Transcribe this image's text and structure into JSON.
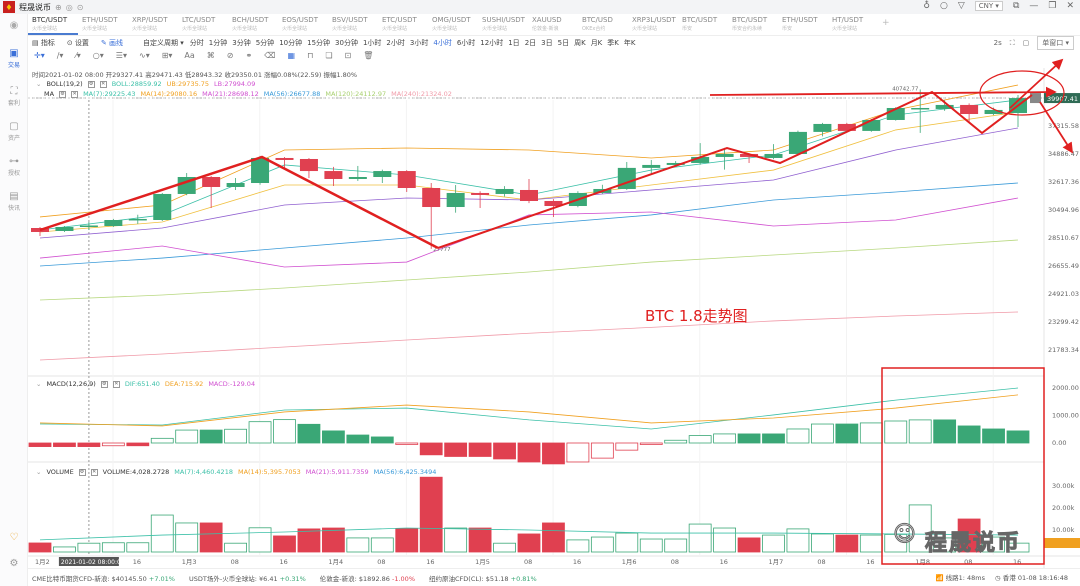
{
  "app": {
    "title": "程晟说币",
    "currency": "CNY"
  },
  "sidebar": {
    "items": [
      {
        "label": "交易",
        "active": true
      },
      {
        "label": "套利"
      },
      {
        "label": "资产"
      },
      {
        "label": "授权"
      },
      {
        "label": "快讯"
      }
    ]
  },
  "tabs": [
    {
      "pair": "BTC/USDT",
      "exchange": "火币全球站",
      "active": true
    },
    {
      "pair": "ETH/USDT",
      "exchange": "火币全球站"
    },
    {
      "pair": "XRP/USDT",
      "exchange": "火币全球站"
    },
    {
      "pair": "LTC/USDT",
      "exchange": "火币全球站"
    },
    {
      "pair": "BCH/USDT",
      "exchange": "火币全球站"
    },
    {
      "pair": "EOS/USDT",
      "exchange": "火币全球站"
    },
    {
      "pair": "BSV/USDT",
      "exchange": "火币全球站"
    },
    {
      "pair": "ETC/USDT",
      "exchange": "火币全球站"
    },
    {
      "pair": "OMG/USDT",
      "exchange": "火币全球站"
    },
    {
      "pair": "SUSHI/USDT",
      "exchange": "火币全球站"
    },
    {
      "pair": "XAUUSD",
      "exchange": "伦敦金·新浪"
    },
    {
      "pair": "BTC/USD",
      "exchange": "OKEx合约"
    },
    {
      "pair": "XRP3L/USDT",
      "exchange": "火币全球站"
    },
    {
      "pair": "BTC/USDT",
      "exchange": "币安"
    },
    {
      "pair": "BTC/USDT",
      "exchange": "币安合约永续"
    },
    {
      "pair": "ETH/USDT",
      "exchange": "币安"
    },
    {
      "pair": "HT/USDT",
      "exchange": "火币全球站"
    }
  ],
  "toolbar": {
    "indicator": "指标",
    "settings": "设置",
    "draw": "画线",
    "custom_period": "自定义周期 ▾",
    "periods": [
      "分时",
      "1分钟",
      "3分钟",
      "5分钟",
      "10分钟",
      "15分钟",
      "30分钟",
      "1小时",
      "2小时",
      "3小时",
      "4小时",
      "6小时",
      "12小时",
      "1日",
      "2日",
      "3日",
      "5日",
      "周K",
      "月K",
      "季K",
      "年K"
    ],
    "active_period": "4小时",
    "refresh": "2s",
    "window_mode": "单窗口 ▾"
  },
  "info": {
    "time": "时间2021-01-02 08:00",
    "open": "开29327.41",
    "high": "高29471.43",
    "low": "低28943.32",
    "close": "收29350.01",
    "change": "涨幅0.08%(22.59)",
    "amplitude": "振幅1.80%"
  },
  "legends": {
    "boll": {
      "name": "BOLL(19,2)",
      "mid": "BOLL:28859.92",
      "ub": "UB:29735.75",
      "lb": "LB:27994.09"
    },
    "ma": {
      "name": "MA",
      "ma7": "MA(7):29225.43",
      "ma14": "MA(14):29080.16",
      "ma21": "MA(21):28698.12",
      "ma56": "MA(56):26677.88",
      "ma120": "MA(120):24112.97",
      "ma240": "MA(240):21324.02"
    },
    "macd": {
      "name": "MACD(12,26,9)",
      "dif": "DIF:651.40",
      "dea": "DEA:715.92",
      "macd": "MACD:-129.04"
    },
    "volume": {
      "name": "VOLUME",
      "vol": "VOLUME:4,028.2728",
      "ma7": "MA(7):4,460.4218",
      "ma14": "MA(14):5,395.7053",
      "ma21": "MA(21):5,911.7359",
      "ma56": "MA(56):6,425.3494"
    }
  },
  "colors": {
    "up": "#3aa776",
    "down": "#e04050",
    "accent": "#3a6fd8",
    "annotation": "#e02020",
    "ma7": "#3cc0a8",
    "ma14": "#f0a020",
    "ma21": "#d050d0",
    "ma56": "#3a9ad8",
    "ma120": "#a8d070",
    "ma240": "#f08090"
  },
  "chart_data": [
    {
      "type": "candlestick",
      "title": "",
      "interval": "4h",
      "scale": "log",
      "price_ticks": [
        39907.41,
        37315.58,
        34886.47,
        32617.36,
        30494.96,
        28510.67,
        26655.49,
        24921.03,
        23299.42,
        21783.34
      ],
      "current_price": "39907.41",
      "high_label": "40742.77",
      "low_label": "27777",
      "time_labels": [
        "1月2",
        "2021-01-02 08:00:00",
        "16",
        "1月3",
        "08",
        "16",
        "1月4",
        "08",
        "16",
        "1月5",
        "08",
        "16",
        "1月6",
        "08",
        "16",
        "1月7",
        "08",
        "16",
        "1月8",
        "08",
        "16"
      ],
      "ohlc": [
        [
          29204,
          29274,
          28650,
          28926
        ],
        [
          28995,
          29344,
          28926,
          29274
        ],
        [
          29344,
          29630,
          29065,
          29380
        ],
        [
          29344,
          29850,
          29280,
          29771
        ],
        [
          29771,
          30150,
          29490,
          29846
        ],
        [
          29771,
          31770,
          29700,
          31693
        ],
        [
          31693,
          33329,
          31600,
          33012
        ],
        [
          33012,
          33100,
          30642,
          32229
        ],
        [
          32229,
          32934,
          31998,
          32539
        ],
        [
          32539,
          34726,
          32400,
          34556
        ],
        [
          34556,
          34640,
          33650,
          34390
        ],
        [
          34472,
          34556,
          32934,
          33488
        ],
        [
          33488,
          33822,
          32306,
          32855
        ],
        [
          32855,
          33900,
          32700,
          33012
        ],
        [
          33012,
          33600,
          32539,
          33488
        ],
        [
          33488,
          33560,
          31845,
          32151
        ],
        [
          32151,
          32539,
          27777,
          30715
        ],
        [
          30715,
          32380,
          30300,
          31769
        ],
        [
          31769,
          31900,
          30642,
          31617
        ],
        [
          31693,
          32300,
          31500,
          32075
        ],
        [
          31998,
          32855,
          31000,
          31162
        ],
        [
          31162,
          31300,
          29990,
          30789
        ],
        [
          30789,
          31900,
          30700,
          31769
        ],
        [
          31769,
          32400,
          31700,
          32075
        ],
        [
          32075,
          34226,
          32000,
          33742
        ],
        [
          33742,
          34390,
          33300,
          33982
        ],
        [
          33982,
          34300,
          33900,
          34144
        ],
        [
          34144,
          35815,
          34000,
          34640
        ],
        [
          34640,
          35400,
          33600,
          34890
        ],
        [
          34890,
          34950,
          34144,
          34640
        ],
        [
          34556,
          35730,
          34450,
          34890
        ],
        [
          34890,
          36900,
          34800,
          36790
        ],
        [
          36790,
          37600,
          36400,
          37500
        ],
        [
          37500,
          37600,
          36800,
          36877
        ],
        [
          36877,
          37950,
          36800,
          37860
        ],
        [
          37860,
          39050,
          37800,
          38967
        ],
        [
          38875,
          40742,
          36702,
          38967
        ],
        [
          38875,
          39700,
          38700,
          39252
        ],
        [
          39252,
          39400,
          37589,
          38407
        ],
        [
          38407,
          39000,
          38300,
          38784
        ],
        [
          38498,
          40200,
          37230,
          39907
        ]
      ],
      "line_sample_index": [
        0,
        5,
        10,
        15,
        20,
        25,
        30,
        35,
        40
      ],
      "lines": [
        {
          "name": "UB",
          "color": "#f0a020",
          "values": [
            29990,
            30864,
            35224,
            35395,
            35224,
            34556,
            35224,
            38776,
            41179
          ]
        },
        {
          "name": "MA(7)",
          "color": "#3cc0a8",
          "values": [
            29065,
            30134,
            33982,
            33170,
            31617,
            33568,
            34808,
            38315,
            39727
          ]
        },
        {
          "name": "MA(14)",
          "color": "#f0c040",
          "values": [
            28926,
            29628,
            32385,
            32385,
            31237,
            32385,
            33568,
            36966,
            38590
          ]
        },
        {
          "name": "MA(21)",
          "color": "#9060d0",
          "values": [
            28510,
            29204,
            30864,
            31388,
            31237,
            31998,
            32773,
            35224,
            37140
          ]
        },
        {
          "name": "MA(56)",
          "color": "#3a9ad8",
          "values": [
            26655,
            27170,
            27832,
            28510,
            29417,
            30134,
            31237,
            31845,
            32539
          ]
        },
        {
          "name": "LB",
          "color": "#d050d0",
          "values": [
            27170,
            27966,
            26590,
            26910,
            30134,
            30347,
            29344,
            29771,
            31388
          ]
        },
        {
          "name": "MA(120)",
          "color": "#b8d880",
          "values": [
            24563,
            24860,
            25283,
            25774,
            26273,
            26910,
            27370,
            27832,
            28373
          ]
        },
        {
          "name": "MA(240)",
          "color": "#f09aa8",
          "values": [
            21266,
            21575,
            21940,
            22313,
            22680,
            23000,
            23360,
            23637,
            23866
          ]
        }
      ]
    },
    {
      "type": "bar",
      "title": "",
      "indicator": "MACD",
      "ticks": [
        2000,
        1000,
        0
      ],
      "tick_labels": [
        "2000.00",
        "1000.00",
        "0.00"
      ],
      "histogram": [
        -130,
        -130,
        -130,
        -100,
        -100,
        170,
        470,
        470,
        500,
        775,
        850,
        680,
        440,
        290,
        220,
        -30,
        -430,
        -490,
        -490,
        -580,
        -690,
        -760,
        -690,
        -550,
        -260,
        -30,
        100,
        270,
        330,
        330,
        330,
        510,
        690,
        690,
        730,
        800,
        840,
        840,
        620,
        510,
        440
      ],
      "dif": [
        690,
        655,
        1200,
        1270,
        840,
        510,
        1020,
        1560,
        2000
      ],
      "dea": [
        730,
        620,
        1130,
        1380,
        1130,
        730,
        910,
        1270,
        1750
      ]
    },
    {
      "type": "bar",
      "title": "",
      "indicator": "VOLUME",
      "ticks": [
        30000,
        20000,
        10000
      ],
      "tick_labels": [
        "30.00k",
        "20.00k",
        "10.00k"
      ],
      "values": [
        4100,
        2300,
        4000,
        4200,
        4200,
        16800,
        13200,
        13200,
        4000,
        11000,
        7300,
        10500,
        10900,
        6400,
        6400,
        10500,
        34000,
        10900,
        10900,
        4000,
        8200,
        13200,
        5500,
        6800,
        8600,
        5900,
        5900,
        12700,
        10900,
        6400,
        7700,
        10500,
        8200,
        7700,
        7700,
        8000,
        21400,
        6400,
        15000,
        6800,
        4028
      ],
      "ma7": [
        5500,
        7700,
        9100,
        10900,
        10000,
        8600,
        8600,
        8200,
        7700
      ]
    }
  ],
  "annotations": {
    "caption": "BTC 1.8走势图",
    "watermark": "程晟说币"
  },
  "status": {
    "items": [
      {
        "name": "CME比特币期货CFD-新浪:",
        "value": "$40145.50",
        "change": "+7.01%",
        "dir": "up"
      },
      {
        "name": "USDT场外-火币全球站:",
        "value": "¥6.41",
        "change": "+0.31%",
        "dir": "up"
      },
      {
        "name": "伦敦金-新浪:",
        "value": "$1892.86",
        "change": "-1.00%",
        "dir": "dn"
      },
      {
        "name": "纽约原油CFD(CL):",
        "value": "$51.18",
        "change": "+0.81%",
        "dir": "up"
      }
    ],
    "line": "线路1: 48ms",
    "clock": "香港 01-08 18:16:48"
  }
}
